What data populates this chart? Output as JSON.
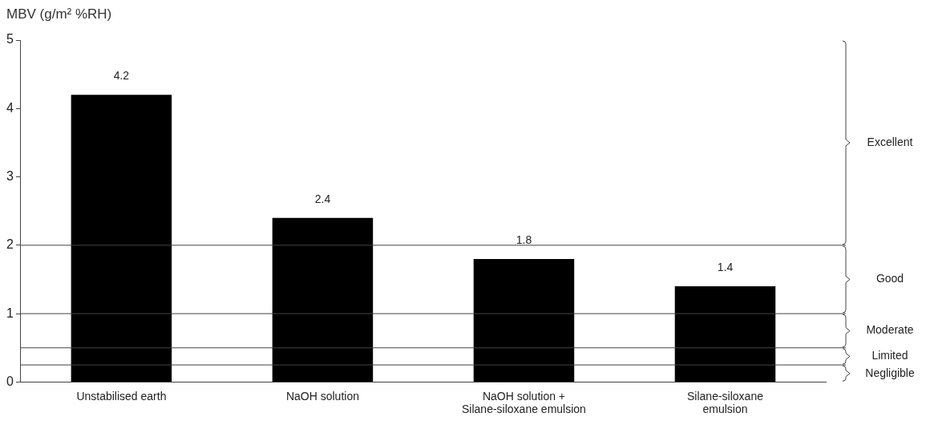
{
  "chart_data": {
    "type": "bar",
    "ylabel": "MBV (g/m² %RH)",
    "categories": [
      "Unstabilised earth",
      "NaOH solution",
      "NaOH solution +\nSilane-siloxane emulsion",
      "Silane-siloxane\nemulsion"
    ],
    "values": [
      4.2,
      2.4,
      1.8,
      1.4
    ],
    "color": "#000000",
    "data_labels": true,
    "ylim": [
      0,
      5
    ],
    "yticks": [
      0,
      1,
      2,
      3,
      4,
      5
    ],
    "grid": false,
    "legend": false,
    "ref_lines": [
      {
        "axis": "y",
        "value": 2
      },
      {
        "axis": "y",
        "value": 1
      },
      {
        "axis": "y",
        "value": 0.5
      },
      {
        "axis": "y",
        "value": 0.25
      }
    ],
    "annotations": [
      "Excellent",
      "Good",
      "Moderate",
      "Limited",
      "Negligible"
    ]
  }
}
